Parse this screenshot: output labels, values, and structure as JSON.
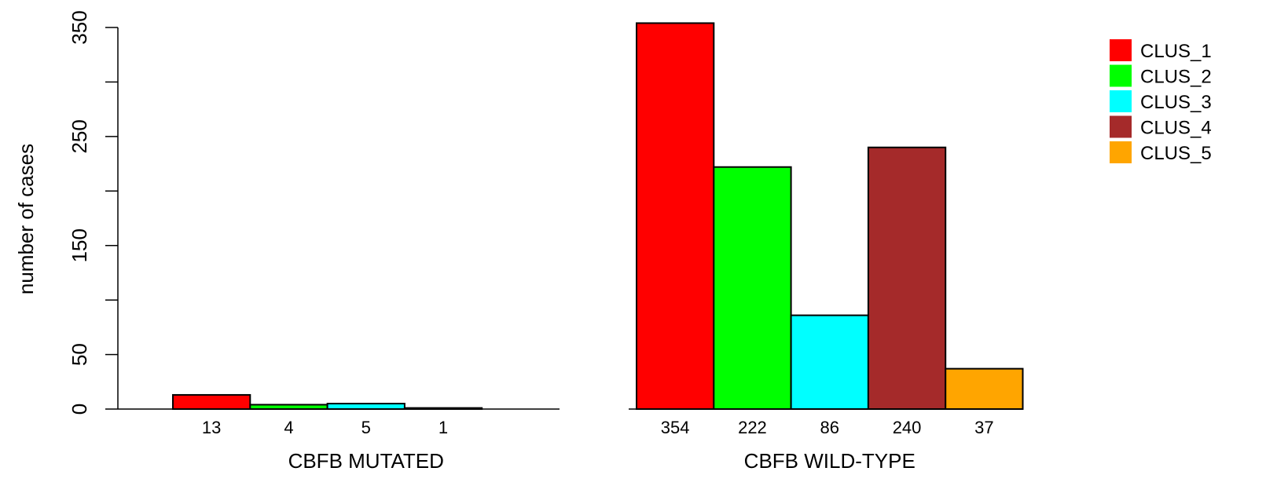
{
  "chart_data": {
    "type": "bar",
    "ylabel": "number of cases",
    "ylim": [
      0,
      350
    ],
    "yticks": [
      0,
      50,
      150,
      250,
      350
    ],
    "groups": [
      {
        "name": "CBFB MUTATED",
        "values": [
          13,
          4,
          5,
          1,
          0
        ],
        "labels": [
          "13",
          "4",
          "5",
          "1",
          ""
        ]
      },
      {
        "name": "CBFB WILD-TYPE",
        "values": [
          354,
          222,
          86,
          240,
          37
        ],
        "labels": [
          "354",
          "222",
          "86",
          "240",
          "37"
        ]
      }
    ],
    "series": [
      {
        "name": "CLUS_1",
        "color": "#ff0000"
      },
      {
        "name": "CLUS_2",
        "color": "#00ff00"
      },
      {
        "name": "CLUS_3",
        "color": "#00ffff"
      },
      {
        "name": "CLUS_4",
        "color": "#a52a2a"
      },
      {
        "name": "CLUS_5",
        "color": "#ffa500"
      }
    ],
    "legend_position": "top-right",
    "grid": false
  }
}
